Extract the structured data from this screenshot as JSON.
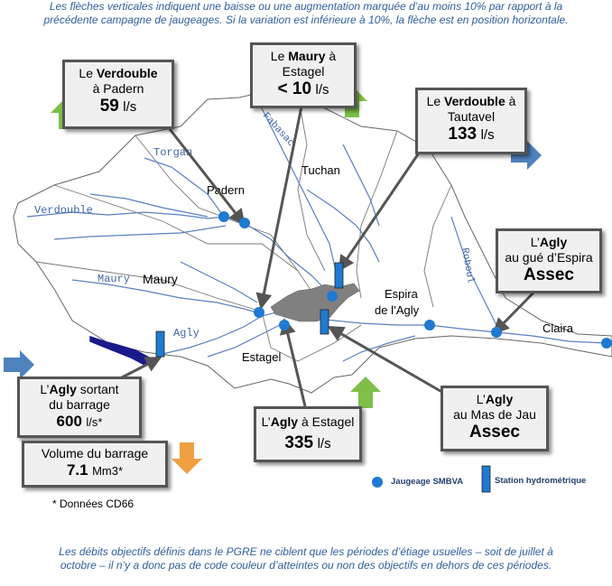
{
  "notes": {
    "top_line1": "Les flèches verticales indiquent une baisse ou une augmentation marquée d’au moins 10% par rapport à la",
    "top_line2": "précédente campagne de jaugeages. Si la variation est inférieure à 10%, la flèche est en position horizontale.",
    "bottom_line1": "Les débits objectifs définis dans le PGRE ne ciblent que les périodes d’étiage usuelles – soit de juillet à",
    "bottom_line2": "octobre – il n’y a donc pas de code couleur d’atteintes ou non des objectifs en dehors de ces périodes."
  },
  "map_labels": {
    "torgan": "Torgan",
    "verdouble": "Verdouble",
    "maury_river": "Maury",
    "agly": "Agly",
    "roboul": "Roboul",
    "fabasac": "Fabasac",
    "padern": "Padern",
    "tuchan": "Tuchan",
    "maury_town": "Maury",
    "espira_1": "Espira",
    "espira_2": "de l’Agly",
    "claira": "Claira",
    "estagel": "Estagel"
  },
  "callouts": {
    "padern": {
      "pre": "Le ",
      "river": "Verdouble",
      "post": " ",
      "line2": "à Padern",
      "value": "59",
      "unit": "l/s",
      "trend": "hausse"
    },
    "estagel_maury": {
      "pre": "Le ",
      "river": "Maury",
      "post": " à",
      "line2": "Estagel",
      "value": "< 10",
      "unit": "l/s",
      "trend": "hausse"
    },
    "tautavel": {
      "pre": "Le ",
      "river": "Verdouble",
      "post": " à",
      "line2": "Tautavel",
      "value": "133",
      "unit": "l/s",
      "trend": "stable"
    },
    "espira": {
      "pre": "L’",
      "river": "Agly",
      "post": "",
      "line2": "au gué d’Espira",
      "value": "Assec",
      "trend": "none"
    },
    "barrage": {
      "pre": "L’",
      "river": "Agly",
      "post": " sortant",
      "line2": "du barrage",
      "value": "600",
      "unit": "l/s*",
      "trend": "stable"
    },
    "volume": {
      "line1": "Volume  du barrage",
      "value": "7.1",
      "unit": "Mm3*",
      "trend": "baisse"
    },
    "agly_estagel": {
      "pre": "L’",
      "river": "Agly",
      "post": " à Estagel",
      "value": "335",
      "unit": "l/s",
      "trend": "hausse"
    },
    "masdejau": {
      "pre": "L’",
      "river": "Agly",
      "post": "",
      "line2": "au Mas de Jau",
      "value": "Assec",
      "trend": "none"
    }
  },
  "legend": {
    "jaugeage": "Jaugeage SMBVA",
    "station": "Station hydrométrique"
  },
  "footnote": "*  Données CD66",
  "colors": {
    "note_text": "#2e5f9e",
    "river": "#5b7fc1",
    "point": "#1f7ad1",
    "arrow_up": "#7dbf48",
    "arrow_right": "#4f81bd",
    "arrow_down": "#f0a040",
    "reservoir": "#1a1a8c",
    "city": "#777777"
  }
}
